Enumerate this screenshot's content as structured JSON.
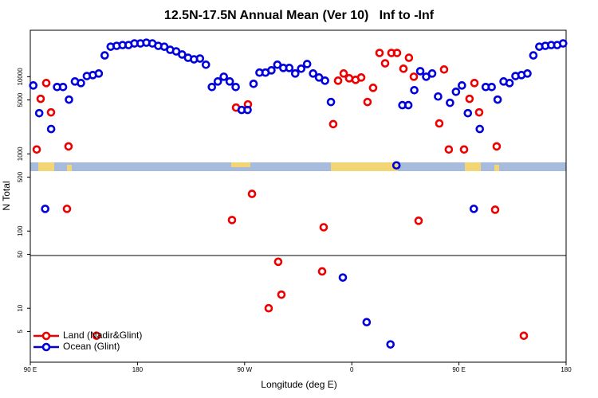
{
  "chart_data": {
    "type": "scatter",
    "title": "12.5N-17.5N Annual Mean (Ver 10)   Inf to -Inf",
    "x_label": "Longitude (deg E)",
    "y_label": "N Total",
    "xlim": [
      90,
      540
    ],
    "xticks": [
      {
        "value": 90,
        "label": "90 E"
      },
      180,
      {
        "value": 270,
        "label": "90 W"
      },
      {
        "value": 360,
        "label": "0"
      },
      {
        "value": 450,
        "label": "90 E"
      },
      {
        "value": 540,
        "label": "180"
      }
    ],
    "ylim": [
      2,
      40000
    ],
    "yticks": [
      5,
      10,
      50,
      100,
      500,
      1000,
      5000,
      10000
    ],
    "log_y": true,
    "legend": "lower left",
    "series": [
      {
        "name": "Land (Nadir&Glint)",
        "color": "#ee0000",
        "x": [
          95.4,
          98.7,
          103.4,
          107.4,
          120.8,
          122.1,
          145.6,
          259.4,
          262.8,
          272.8,
          276.2,
          290.2,
          298.2,
          300.9,
          335.1,
          336.4,
          344.4,
          348.5,
          353.2,
          357.8,
          363.2,
          367.9,
          373.2,
          377.9,
          383.3,
          388.0,
          393.3,
          398.0,
          403.4,
          408.0,
          412.1,
          416.1,
          433.5,
          437.5,
          441.5,
          454.3,
          458.9,
          463.0,
          467.0,
          480.4,
          481.7,
          504.5
        ],
        "values": [
          1140,
          5170,
          8280,
          3450,
          194,
          1250,
          4.4,
          139,
          3980,
          4380,
          303,
          10,
          40,
          15,
          30,
          112,
          2430,
          8890,
          11000,
          9540,
          9100,
          9770,
          4700,
          7180,
          20300,
          14900,
          20300,
          20300,
          12700,
          17600,
          10000,
          136,
          2480,
          12400,
          1140,
          1140,
          5170,
          8280,
          3450,
          189,
          1250,
          4.4
        ]
      },
      {
        "name": "Ocean (Glint)",
        "color": "#0000dd",
        "x": [
          92.5,
          97.5,
          102.5,
          107.5,
          112.5,
          117.5,
          122.5,
          127.5,
          132.5,
          137.5,
          142.5,
          147.5,
          152.5,
          157.5,
          162.5,
          167.5,
          172.5,
          177.5,
          182.5,
          187.5,
          192.5,
          197.5,
          202.5,
          207.5,
          212.5,
          217.5,
          222.5,
          227.5,
          232.5,
          237.5,
          242.5,
          247.5,
          252.5,
          257.5,
          262.5,
          267.5,
          272.5,
          277.5,
          282.5,
          287.5,
          292.5,
          297.5,
          302.5,
          307.5,
          312.5,
          317.5,
          322.5,
          327.5,
          332.5,
          337.5,
          342.5,
          352.5,
          372.5,
          392.5,
          397.5,
          402.5,
          407.5,
          412.5,
          417.5,
          422.5,
          427.5,
          432.5,
          442.5,
          447.5,
          452.5,
          457.5,
          462.5,
          467.5,
          472.5,
          477.5,
          482.5,
          487.5,
          492.5,
          497.5,
          502.5,
          507.5,
          512.5,
          517.5,
          522.5,
          527.5,
          532.5,
          537.5
        ],
        "values": [
          7710,
          3370,
          194,
          2100,
          7360,
          7360,
          5050,
          8680,
          8280,
          10200,
          10500,
          11000,
          18900,
          24500,
          25100,
          25700,
          25700,
          27000,
          27000,
          27600,
          27000,
          25100,
          24500,
          22300,
          21300,
          19400,
          17600,
          16800,
          17200,
          14300,
          7360,
          8680,
          10000,
          8680,
          7360,
          3710,
          3710,
          8090,
          11300,
          11300,
          12100,
          14300,
          13000,
          13000,
          11000,
          12700,
          14600,
          11000,
          9770,
          8890,
          4700,
          25,
          6.6,
          3.4,
          710,
          4280,
          4280,
          6690,
          11800,
          10000,
          11000,
          5540,
          4590,
          6380,
          7710,
          3370,
          194,
          2100,
          7360,
          7360,
          5050,
          8680,
          8280,
          10200,
          10500,
          11000,
          18900,
          24500,
          25100,
          25700,
          25700,
          27000
        ]
      }
    ]
  }
}
